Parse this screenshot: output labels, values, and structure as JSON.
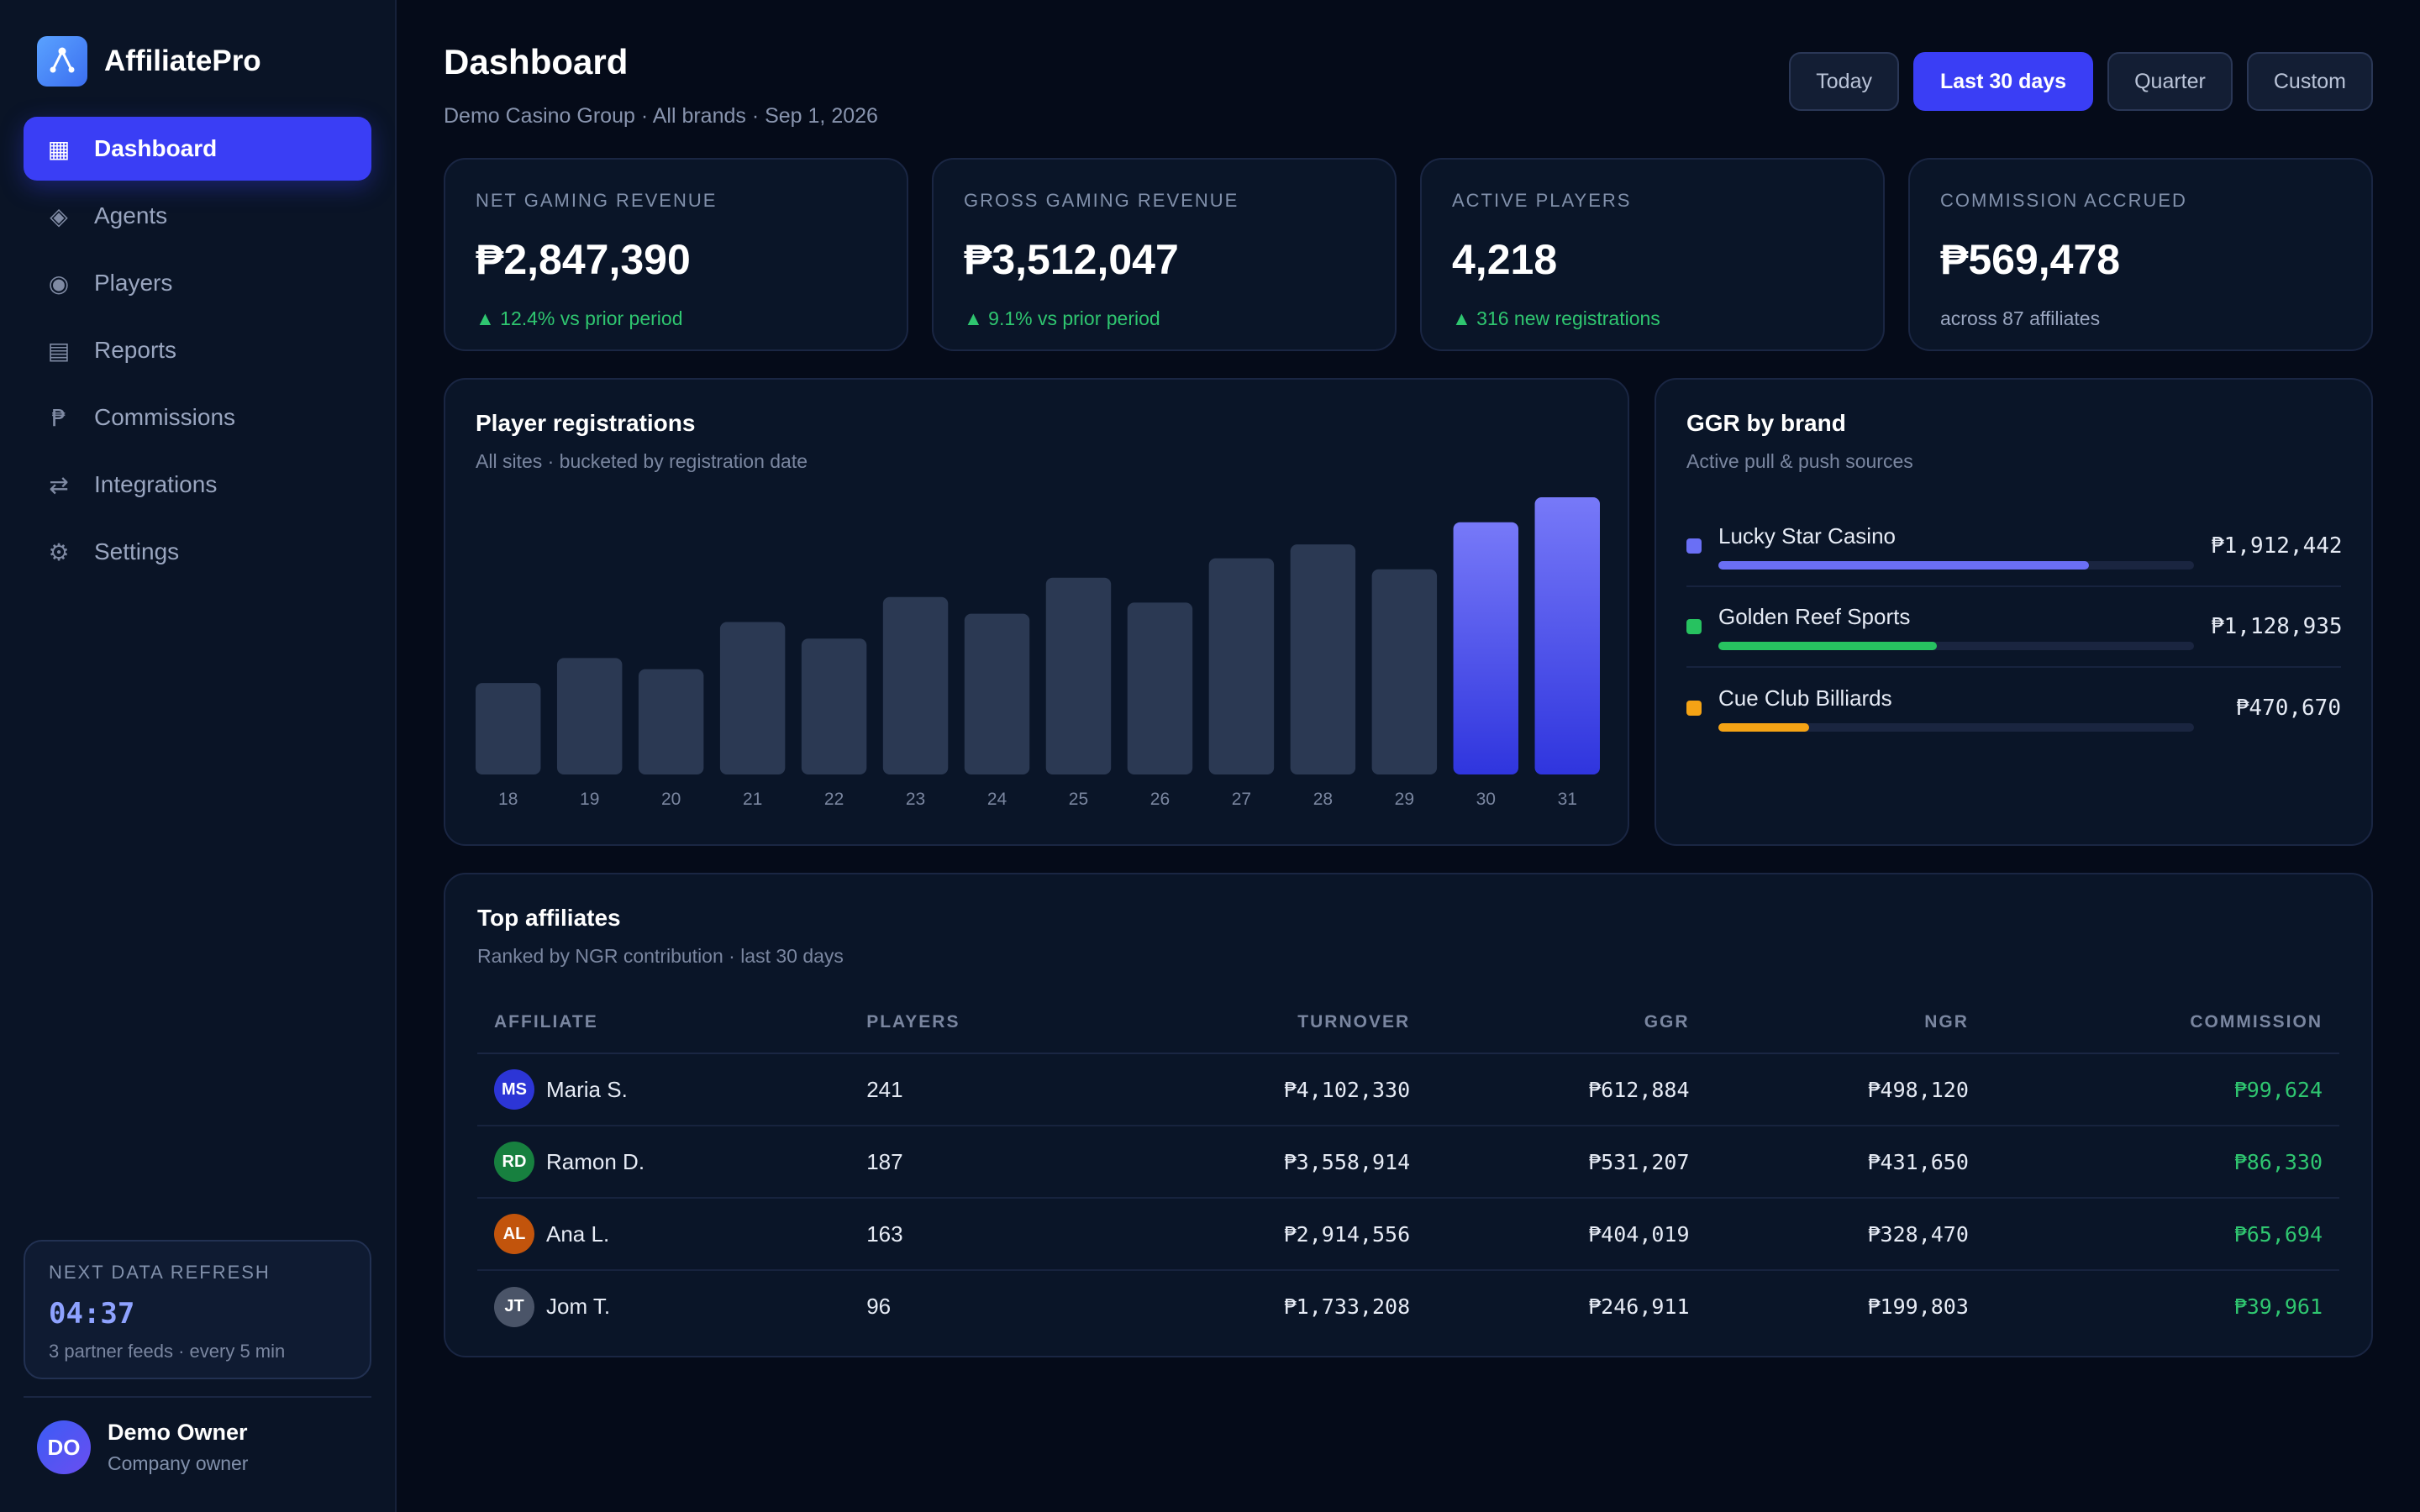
{
  "brand": {
    "name": "AffiliatePro"
  },
  "sidebar": {
    "items": [
      {
        "label": "Dashboard",
        "icon": "dashboard-icon",
        "glyph": "▦",
        "active": true
      },
      {
        "label": "Agents",
        "icon": "agents-icon",
        "glyph": "◈"
      },
      {
        "label": "Players",
        "icon": "players-icon",
        "glyph": "◉"
      },
      {
        "label": "Reports",
        "icon": "reports-icon",
        "glyph": "▤"
      },
      {
        "label": "Commissions",
        "icon": "peso-icon",
        "glyph": "₱"
      },
      {
        "label": "Integrations",
        "icon": "integrations-icon",
        "glyph": "⇄"
      },
      {
        "label": "Settings",
        "icon": "gear-icon",
        "glyph": "⚙"
      }
    ],
    "refresh": {
      "label": "NEXT DATA REFRESH",
      "time": "04:37",
      "sub": "3 partner feeds · every 5 min"
    },
    "user": {
      "initials": "DO",
      "name": "Demo Owner",
      "role": "Company owner"
    }
  },
  "header": {
    "title": "Dashboard",
    "subtitle": "Demo Casino Group · All brands · Sep 1, 2026",
    "ranges": [
      "Today",
      "Last 30 days",
      "Quarter",
      "Custom"
    ],
    "active_range": "Last 30 days"
  },
  "kpis": [
    {
      "label": "NET GAMING REVENUE",
      "value": "₱2,847,390",
      "delta": "▲ 12.4% vs prior period",
      "positive": true
    },
    {
      "label": "GROSS GAMING REVENUE",
      "value": "₱3,512,047",
      "delta": "▲ 9.1% vs prior period",
      "positive": true
    },
    {
      "label": "ACTIVE PLAYERS",
      "value": "4,218",
      "delta": "▲ 316 new registrations",
      "positive": true
    },
    {
      "label": "COMMISSION ACCRUED",
      "value": "₱569,478",
      "delta": "across 87 affiliates",
      "positive": false
    }
  ],
  "registrations": {
    "title": "Player registrations",
    "subtitle": "All sites · bucketed by registration date"
  },
  "chart_data": {
    "type": "bar",
    "categories": [
      "18",
      "19",
      "20",
      "21",
      "22",
      "23",
      "24",
      "25",
      "26",
      "27",
      "28",
      "29",
      "30",
      "31"
    ],
    "values": [
      33,
      42,
      38,
      55,
      49,
      64,
      58,
      71,
      62,
      78,
      83,
      74,
      91,
      100
    ],
    "highlight": [
      "30",
      "31"
    ],
    "ylim": [
      0,
      100
    ],
    "grid": false,
    "colors": {
      "bar": "#2b3953",
      "highlight_top": "#7779f8",
      "highlight_bottom": "#2f35de"
    }
  },
  "ggr": {
    "title": "GGR by brand",
    "subtitle": "Active pull & push sources",
    "brands": [
      {
        "name": "Lucky Star Casino",
        "value": "₱1,912,442",
        "share": 0.78,
        "color": "#6a6ff5"
      },
      {
        "name": "Golden Reef Sports",
        "value": "₱1,128,935",
        "share": 0.46,
        "color": "#27c260"
      },
      {
        "name": "Cue Club Billiards",
        "value": "₱470,670",
        "share": 0.19,
        "color": "#f5a315"
      }
    ]
  },
  "affiliates": {
    "title": "Top affiliates",
    "subtitle": "Ranked by NGR contribution · last 30 days",
    "columns": [
      "AFFILIATE",
      "PLAYERS",
      "TURNOVER",
      "GGR",
      "NGR",
      "COMMISSION"
    ],
    "rows": [
      {
        "initials": "MS",
        "name": "Maria S.",
        "color": "#2c35d6",
        "players": "241",
        "turnover": "₱4,102,330",
        "ggr": "₱612,884",
        "ngr": "₱498,120",
        "commission": "₱99,624"
      },
      {
        "initials": "RD",
        "name": "Ramon D.",
        "color": "#17803f",
        "players": "187",
        "turnover": "₱3,558,914",
        "ggr": "₱531,207",
        "ngr": "₱431,650",
        "commission": "₱86,330"
      },
      {
        "initials": "AL",
        "name": "Ana L.",
        "color": "#c2540c",
        "players": "163",
        "turnover": "₱2,914,556",
        "ggr": "₱404,019",
        "ngr": "₱328,470",
        "commission": "₱65,694"
      },
      {
        "initials": "JT",
        "name": "Jom T.",
        "color": "#4a5468",
        "players": "96",
        "turnover": "₱1,733,208",
        "ggr": "₱246,911",
        "ngr": "₱199,803",
        "commission": "₱39,961"
      }
    ]
  }
}
